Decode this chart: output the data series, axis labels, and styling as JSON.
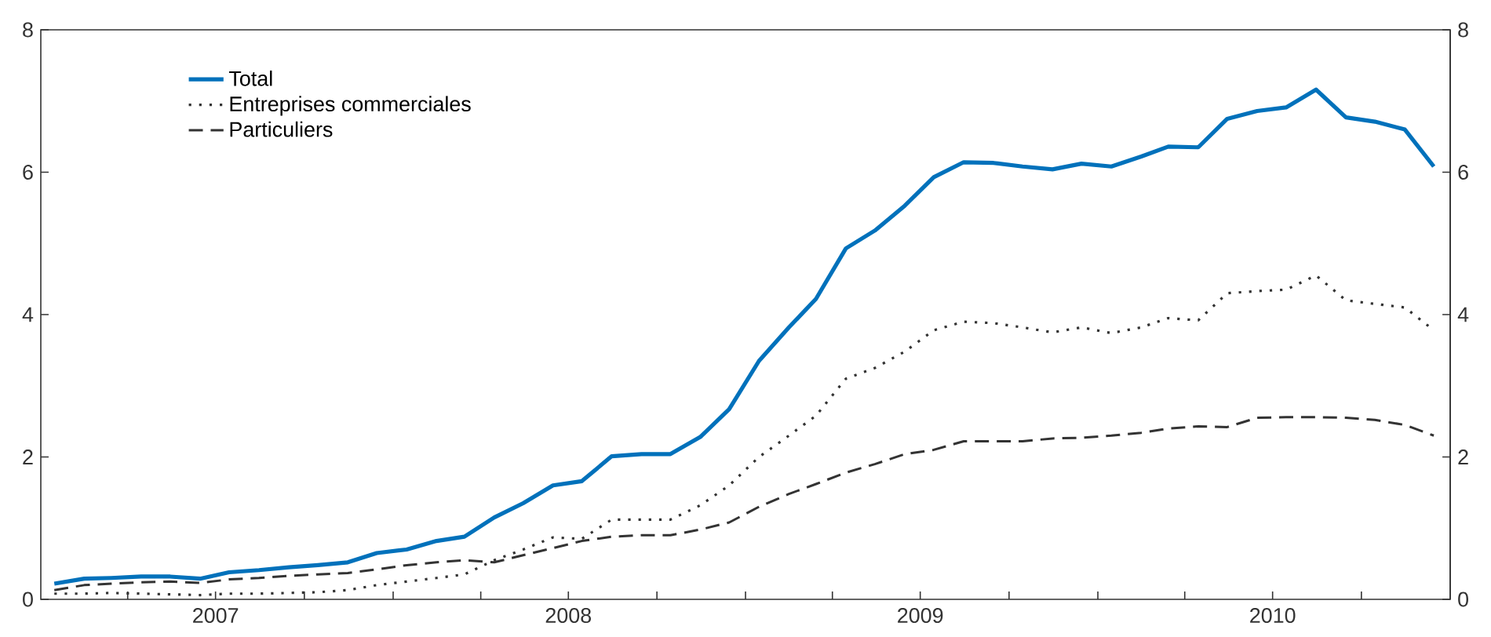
{
  "chart_data": {
    "type": "line",
    "x": [
      "2007-01-15",
      "2007-02-15",
      "2007-03-15",
      "2007-04-15",
      "2007-05-15",
      "2007-06-15",
      "2007-07-15",
      "2007-08-15",
      "2007-09-15",
      "2007-10-15",
      "2007-11-15",
      "2007-12-15",
      "2008-01-15",
      "2008-02-15",
      "2008-03-15",
      "2008-04-15",
      "2008-05-15",
      "2008-06-15",
      "2008-07-15",
      "2008-08-15",
      "2008-09-15",
      "2008-10-15",
      "2008-11-15",
      "2008-12-15",
      "2009-01-15",
      "2009-02-15",
      "2009-03-15",
      "2009-04-15",
      "2009-05-15",
      "2009-06-15",
      "2009-07-15",
      "2009-08-15",
      "2009-09-15",
      "2009-10-15",
      "2009-11-15",
      "2009-12-15",
      "2010-01-15",
      "2010-02-15",
      "2010-03-15",
      "2010-04-15",
      "2010-05-15",
      "2010-06-15",
      "2010-07-15",
      "2010-08-15",
      "2010-09-15",
      "2010-10-15",
      "2010-11-15",
      "2010-12-15"
    ],
    "series": [
      {
        "name": "Total",
        "color": "#0071bb",
        "line_style": "solid",
        "values": [
          0.22,
          0.29,
          0.3,
          0.32,
          0.32,
          0.29,
          0.38,
          0.41,
          0.45,
          0.48,
          0.52,
          0.65,
          0.7,
          0.82,
          0.88,
          1.15,
          1.35,
          1.6,
          1.66,
          2.01,
          2.04,
          2.04,
          2.28,
          2.67,
          3.35,
          3.82,
          4.22,
          4.93,
          5.18,
          5.53,
          5.93,
          6.14,
          6.13,
          6.08,
          6.04,
          6.12,
          6.08,
          6.22,
          6.36,
          6.35,
          6.75,
          6.86,
          6.91,
          7.16,
          6.77,
          6.71,
          6.6,
          6.08
        ]
      },
      {
        "name": "Entreprises commerciales",
        "color": "#333333",
        "line_style": "dotted",
        "values": [
          0.08,
          0.08,
          0.09,
          0.08,
          0.07,
          0.06,
          0.08,
          0.08,
          0.09,
          0.1,
          0.13,
          0.2,
          0.25,
          0.3,
          0.35,
          0.55,
          0.7,
          0.87,
          0.85,
          1.12,
          1.12,
          1.12,
          1.32,
          1.6,
          2.0,
          2.3,
          2.58,
          3.1,
          3.25,
          3.48,
          3.78,
          3.9,
          3.88,
          3.82,
          3.75,
          3.82,
          3.74,
          3.82,
          3.95,
          3.92,
          4.3,
          4.33,
          4.35,
          4.55,
          4.2,
          4.15,
          4.1,
          3.78
        ]
      },
      {
        "name": "Particuliers",
        "color": "#333333",
        "line_style": "dashed",
        "values": [
          0.13,
          0.2,
          0.22,
          0.24,
          0.25,
          0.23,
          0.28,
          0.3,
          0.33,
          0.35,
          0.37,
          0.42,
          0.48,
          0.52,
          0.55,
          0.52,
          0.62,
          0.72,
          0.82,
          0.88,
          0.9,
          0.9,
          0.98,
          1.08,
          1.3,
          1.48,
          1.62,
          1.78,
          1.9,
          2.04,
          2.1,
          2.22,
          2.22,
          2.22,
          2.26,
          2.27,
          2.3,
          2.34,
          2.4,
          2.43,
          2.42,
          2.55,
          2.56,
          2.56,
          2.55,
          2.52,
          2.45,
          2.3
        ]
      }
    ],
    "xlim": [
      "2007-01-01",
      "2011-01-01"
    ],
    "xticks": [
      {
        "value": "2007-04-01",
        "label": null
      },
      {
        "value": "2007-07-01",
        "label": "2007"
      },
      {
        "value": "2007-10-01",
        "label": null
      },
      {
        "value": "2008-01-01",
        "label": null
      },
      {
        "value": "2008-04-01",
        "label": null
      },
      {
        "value": "2008-07-01",
        "label": "2008"
      },
      {
        "value": "2008-10-01",
        "label": null
      },
      {
        "value": "2009-01-01",
        "label": null
      },
      {
        "value": "2009-04-01",
        "label": null
      },
      {
        "value": "2009-07-01",
        "label": "2009"
      },
      {
        "value": "2009-10-01",
        "label": null
      },
      {
        "value": "2010-01-01",
        "label": null
      },
      {
        "value": "2010-04-01",
        "label": null
      },
      {
        "value": "2010-07-01",
        "label": "2010"
      },
      {
        "value": "2010-10-01",
        "label": null
      }
    ],
    "ylim": [
      0,
      8
    ],
    "yticks": [
      0,
      2,
      4,
      6,
      8
    ],
    "y2lim": [
      0,
      8
    ],
    "y2ticks": [
      0,
      2,
      4,
      6,
      8
    ],
    "legend": "top left"
  }
}
